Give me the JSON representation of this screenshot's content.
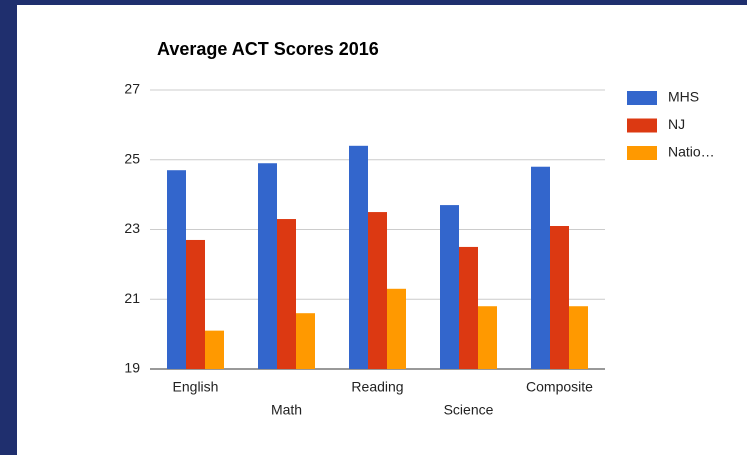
{
  "chart_data": {
    "type": "bar",
    "title": "Average ACT Scores 2016",
    "categories": [
      "English",
      "Math",
      "Reading",
      "Science",
      "Composite"
    ],
    "series": [
      {
        "name": "MHS",
        "color": "#3366cc",
        "values": [
          24.7,
          24.9,
          25.4,
          23.7,
          24.8
        ]
      },
      {
        "name": "NJ",
        "color": "#dc3912",
        "values": [
          22.7,
          23.3,
          23.5,
          22.5,
          23.1
        ]
      },
      {
        "name": "Natio…",
        "color": "#ff9900",
        "values": [
          20.1,
          20.6,
          21.3,
          20.8,
          20.8
        ]
      }
    ],
    "ylim": [
      19,
      27
    ],
    "yticks": [
      19,
      21,
      23,
      25,
      27
    ],
    "grid": true,
    "legend": "right"
  }
}
